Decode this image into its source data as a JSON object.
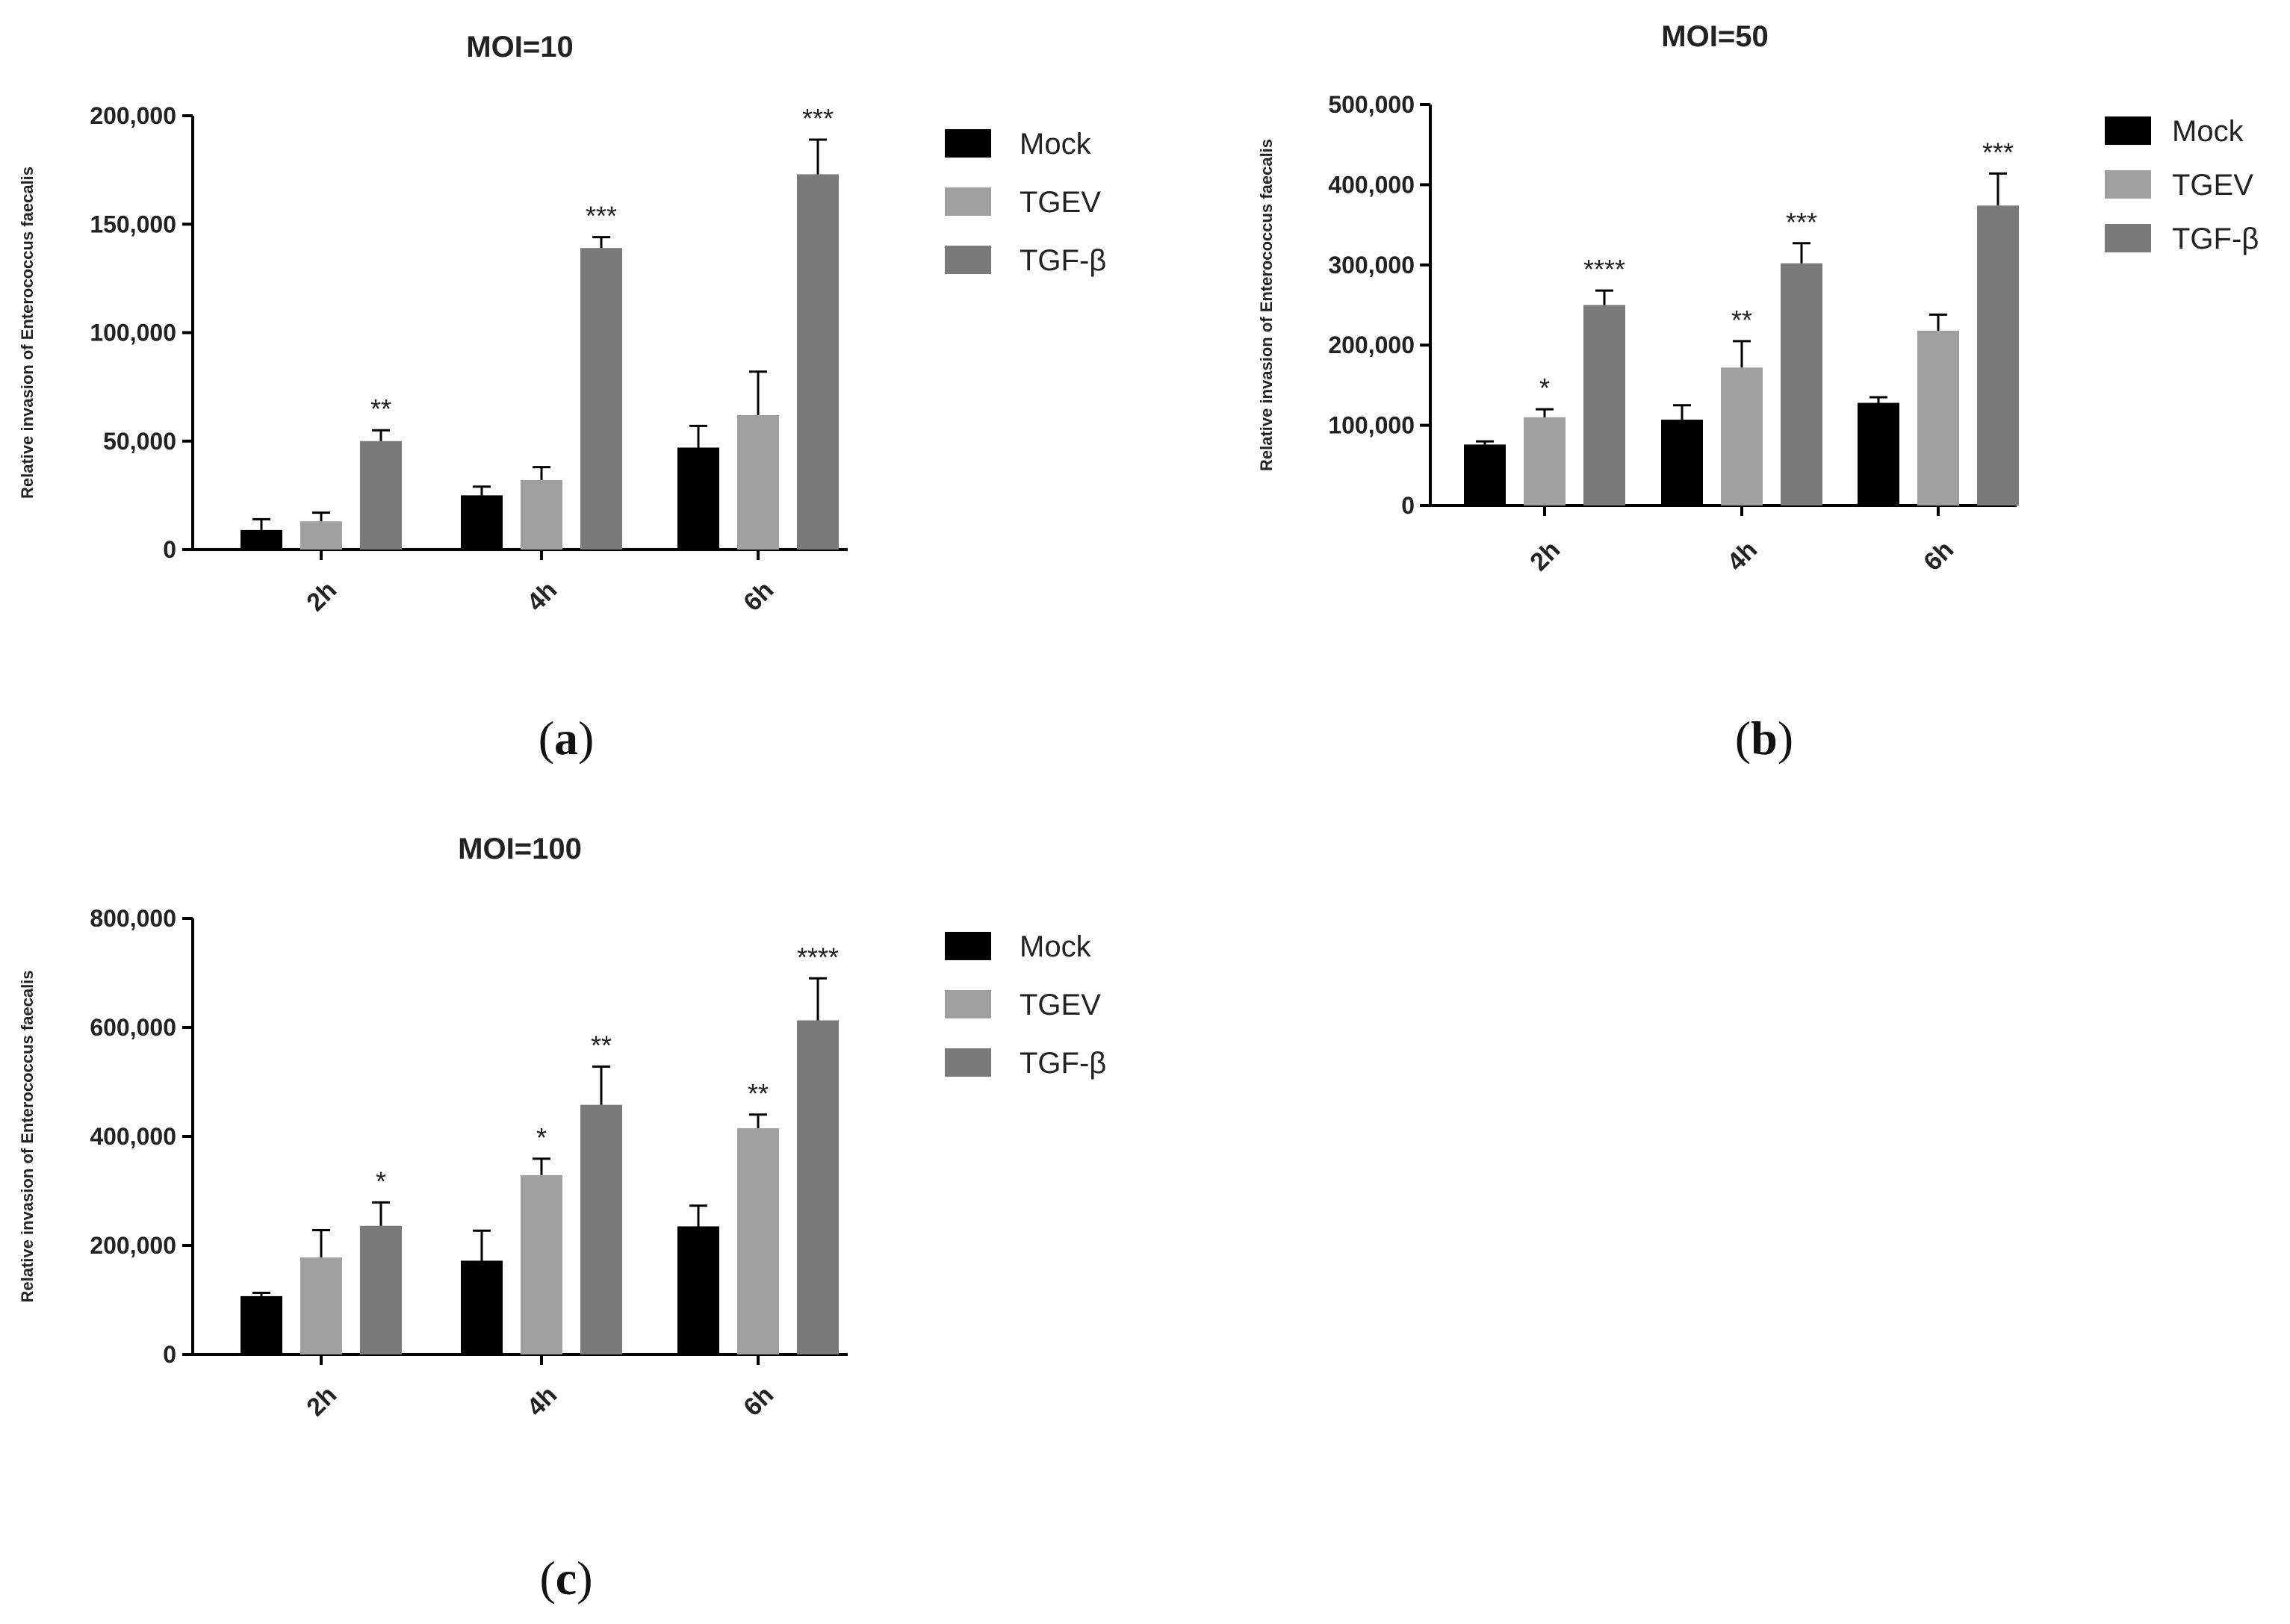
{
  "colors": {
    "Mock": "#000000",
    "TGEV": "#a0a0a0",
    "TGF-β": "#7a7a7a"
  },
  "chart_data": [
    {
      "type": "bar",
      "panel": "a",
      "title": "MOI=10",
      "ylabel": "Relative invasion of Enterococcus faecalis",
      "ylim": [
        0,
        200000
      ],
      "yticks": [
        "0",
        "50,000",
        "100,000",
        "150,000",
        "200,000"
      ],
      "categories": [
        "2h",
        "4h",
        "6h"
      ],
      "series": [
        {
          "name": "Mock",
          "values": [
            9000,
            25000,
            47000
          ],
          "errors": [
            5000,
            4000,
            10000
          ],
          "sig": [
            "",
            "",
            ""
          ]
        },
        {
          "name": "TGEV",
          "values": [
            13000,
            32000,
            62000
          ],
          "errors": [
            4000,
            6000,
            20000
          ],
          "sig": [
            "",
            "",
            ""
          ]
        },
        {
          "name": "TGF-β",
          "values": [
            50000,
            139000,
            173000
          ],
          "errors": [
            5000,
            5000,
            16000
          ],
          "sig": [
            "**",
            "***",
            "***"
          ]
        }
      ]
    },
    {
      "type": "bar",
      "panel": "b",
      "title": "MOI=50",
      "ylabel": "Relative invasion of Enterococcus faecalis",
      "ylim": [
        0,
        500000
      ],
      "yticks": [
        "0",
        "100,000",
        "200,000",
        "300,000",
        "400,000",
        "500,000"
      ],
      "categories": [
        "2h",
        "4h",
        "6h"
      ],
      "series": [
        {
          "name": "Mock",
          "values": [
            76000,
            107000,
            128000
          ],
          "errors": [
            4000,
            18000,
            7000
          ],
          "sig": [
            "",
            "",
            ""
          ]
        },
        {
          "name": "TGEV",
          "values": [
            110000,
            172000,
            218000
          ],
          "errors": [
            10000,
            33000,
            20000
          ],
          "sig": [
            "*",
            "**",
            ""
          ]
        },
        {
          "name": "TGF-β",
          "values": [
            250000,
            302000,
            374000
          ],
          "errors": [
            18000,
            25000,
            40000
          ],
          "sig": [
            "****",
            "***",
            "***"
          ]
        }
      ]
    },
    {
      "type": "bar",
      "panel": "c",
      "title": "MOI=100",
      "ylabel": "Relative invasion of Enterococcus faecalis",
      "ylim": [
        0,
        800000
      ],
      "yticks": [
        "0",
        "200,000",
        "400,000",
        "600,000",
        "800,000"
      ],
      "categories": [
        "2h",
        "4h",
        "6h"
      ],
      "series": [
        {
          "name": "Mock",
          "values": [
            107000,
            172000,
            235000
          ],
          "errors": [
            6000,
            55000,
            38000
          ],
          "sig": [
            "",
            "",
            ""
          ]
        },
        {
          "name": "TGEV",
          "values": [
            178000,
            329000,
            415000
          ],
          "errors": [
            50000,
            30000,
            25000
          ],
          "sig": [
            "",
            "*",
            "**"
          ]
        },
        {
          "name": "TGF-β",
          "values": [
            236000,
            458000,
            613000
          ],
          "errors": [
            43000,
            70000,
            77000
          ],
          "sig": [
            "*",
            "**",
            "****"
          ]
        }
      ]
    }
  ]
}
